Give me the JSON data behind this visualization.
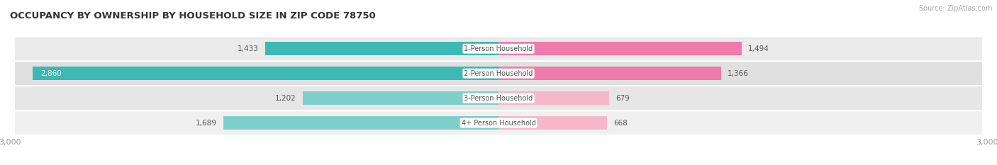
{
  "title": "OCCUPANCY BY OWNERSHIP BY HOUSEHOLD SIZE IN ZIP CODE 78750",
  "source": "Source: ZipAtlas.com",
  "categories": [
    "4+ Person Household",
    "3-Person Household",
    "2-Person Household",
    "1-Person Household"
  ],
  "owner_values": [
    1689,
    1202,
    2860,
    1433
  ],
  "renter_values": [
    668,
    679,
    1366,
    1494
  ],
  "owner_colors": [
    "#7dcfcc",
    "#7dcfcc",
    "#3db8b4",
    "#3db8b4"
  ],
  "renter_colors": [
    "#f5b8cb",
    "#f5b8cb",
    "#f07aaa",
    "#f07aaa"
  ],
  "row_bg_color": "#efefef",
  "row_alt_color": "#e2e2e2",
  "xlim": 3000,
  "title_fontsize": 9.5,
  "label_fontsize": 7.5,
  "tick_fontsize": 8,
  "source_fontsize": 7,
  "legend_fontsize": 7.5,
  "bar_height": 0.55,
  "background_color": "#ffffff",
  "axis_label_color": "#999999",
  "center_label_color": "#555555",
  "value_label_color": "#555555"
}
